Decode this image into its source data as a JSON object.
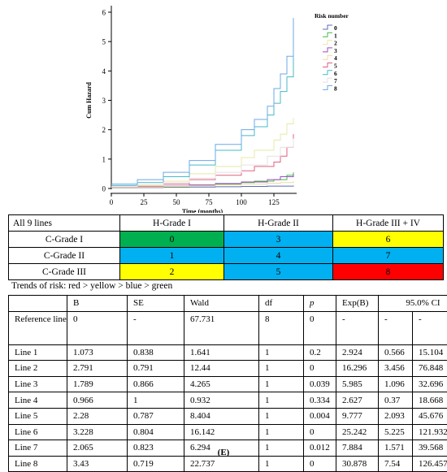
{
  "chart_data": {
    "type": "line",
    "step": true,
    "title": "",
    "xlabel": "Time (months)",
    "ylabel": "Cum Hazard",
    "xlim": [
      0,
      140
    ],
    "ylim": [
      0,
      6
    ],
    "xticks": [
      0,
      25,
      50,
      75,
      100,
      125
    ],
    "yticks": [
      0,
      1,
      2,
      3,
      4,
      5,
      6
    ],
    "grid": false,
    "legend_title": "Risk number",
    "legend_position": "right",
    "series": [
      {
        "name": "0",
        "color": "#5b6fb5",
        "x": [
          0,
          20,
          40,
          60,
          80,
          100,
          120,
          140
        ],
        "y": [
          0.02,
          0.03,
          0.04,
          0.05,
          0.06,
          0.07,
          0.08,
          0.1
        ]
      },
      {
        "name": "1",
        "color": "#48b848",
        "x": [
          0,
          20,
          40,
          60,
          80,
          100,
          110,
          125,
          135,
          140
        ],
        "y": [
          0.03,
          0.04,
          0.06,
          0.1,
          0.15,
          0.2,
          0.25,
          0.3,
          0.45,
          0.55
        ]
      },
      {
        "name": "2",
        "color": "#e8e8a8",
        "x": [
          0,
          20,
          40,
          60,
          80,
          100,
          110,
          125,
          130,
          135,
          140
        ],
        "y": [
          0.06,
          0.12,
          0.25,
          0.5,
          0.75,
          1.05,
          1.3,
          1.65,
          1.85,
          2.2,
          2.4
        ]
      },
      {
        "name": "3",
        "color": "#9a4fc0",
        "x": [
          0,
          20,
          40,
          60,
          80,
          100,
          120,
          130,
          140
        ],
        "y": [
          0.03,
          0.05,
          0.08,
          0.12,
          0.17,
          0.22,
          0.3,
          0.4,
          0.5
        ]
      },
      {
        "name": "4",
        "color": "#f0dca0",
        "x": [
          0,
          20,
          40,
          60,
          80,
          100,
          120,
          130,
          140
        ],
        "y": [
          0.03,
          0.05,
          0.07,
          0.09,
          0.12,
          0.15,
          0.18,
          0.2,
          0.25
        ]
      },
      {
        "name": "5",
        "color": "#e06080",
        "x": [
          0,
          20,
          40,
          60,
          80,
          100,
          110,
          125,
          130,
          135,
          140
        ],
        "y": [
          0.04,
          0.08,
          0.15,
          0.3,
          0.45,
          0.6,
          0.75,
          0.9,
          1.1,
          1.4,
          1.85
        ]
      },
      {
        "name": "6",
        "color": "#4ab8c8",
        "x": [
          0,
          20,
          40,
          60,
          80,
          100,
          110,
          120,
          125,
          130,
          135,
          140
        ],
        "y": [
          0.1,
          0.2,
          0.4,
          0.8,
          1.3,
          1.8,
          2.1,
          2.5,
          2.9,
          3.3,
          3.8,
          4.75
        ]
      },
      {
        "name": "7",
        "color": "#e8e0e0",
        "x": [
          0,
          20,
          40,
          60,
          80,
          100,
          120,
          130,
          140
        ],
        "y": [
          0.05,
          0.1,
          0.2,
          0.35,
          0.55,
          0.8,
          1.1,
          1.4,
          1.7
        ]
      },
      {
        "name": "8",
        "color": "#6aa8e8",
        "x": [
          0,
          20,
          40,
          60,
          80,
          100,
          110,
          120,
          125,
          130,
          135,
          140
        ],
        "y": [
          0.15,
          0.3,
          0.55,
          0.95,
          1.5,
          2.0,
          2.35,
          2.8,
          3.4,
          3.9,
          4.5,
          5.8
        ]
      }
    ]
  },
  "grade_table": {
    "corner": "All 9 lines",
    "columns": [
      "H-Grade I",
      "H-Grade II",
      "H-Grade III + IV"
    ],
    "rows": [
      {
        "label": "C-Grade I",
        "cells": [
          {
            "value": "0",
            "color": "#00b050"
          },
          {
            "value": "3",
            "color": "#00b0f0"
          },
          {
            "value": "6",
            "color": "#ffff00"
          }
        ]
      },
      {
        "label": "C-Grade II",
        "cells": [
          {
            "value": "1",
            "color": "#00b0f0"
          },
          {
            "value": "4",
            "color": "#00b0f0"
          },
          {
            "value": "7",
            "color": "#00b0f0"
          }
        ]
      },
      {
        "label": "C-Grade III",
        "cells": [
          {
            "value": "2",
            "color": "#ffff00"
          },
          {
            "value": "5",
            "color": "#00b0f0"
          },
          {
            "value": "8",
            "color": "#ff0000"
          }
        ]
      }
    ]
  },
  "trend_note": "Trends of risk: red > yellow > blue > green",
  "coef_table": {
    "headers": [
      "",
      "B",
      "SE",
      "Wald",
      "df",
      "p",
      "Exp(B)",
      "95.0% CI"
    ],
    "rows": [
      [
        "Reference line",
        "0",
        "-",
        "67.731",
        "8",
        "0",
        "-",
        "-",
        "-"
      ],
      [
        "Line 1",
        "1.073",
        "0.838",
        "1.641",
        "1",
        "0.2",
        "2.924",
        "0.566",
        "15.104"
      ],
      [
        "Line 2",
        "2.791",
        "0.791",
        "12.44",
        "1",
        "0",
        "16.296",
        "3.456",
        "76.848"
      ],
      [
        "Line 3",
        "1.789",
        "0.866",
        "4.265",
        "1",
        "0.039",
        "5.985",
        "1.096",
        "32.696"
      ],
      [
        "Line 4",
        "0.966",
        "1",
        "0.932",
        "1",
        "0.334",
        "2.627",
        "0.37",
        "18.668"
      ],
      [
        "Line 5",
        "2.28",
        "0.787",
        "8.404",
        "1",
        "0.004",
        "9.777",
        "2.093",
        "45.676"
      ],
      [
        "Line 6",
        "3.228",
        "0.804",
        "16.142",
        "1",
        "0",
        "25.242",
        "5.225",
        "121.932"
      ],
      [
        "Line 7",
        "2.065",
        "0.823",
        "6.294",
        "1",
        "0.012",
        "7.884",
        "1.571",
        "39.568"
      ],
      [
        "Line 8",
        "3.43",
        "0.719",
        "22.737",
        "1",
        "0",
        "30.878",
        "7.54",
        "126.457"
      ]
    ]
  },
  "panel_label": "(E)"
}
